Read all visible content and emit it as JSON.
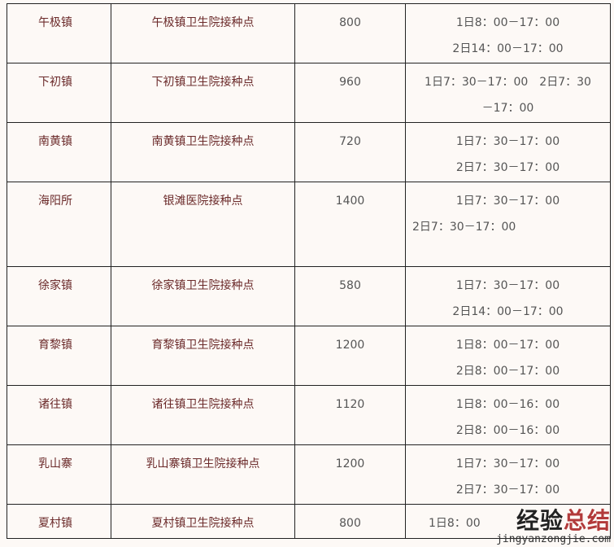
{
  "rows": [
    {
      "town": "午极镇",
      "site": "午极镇卫生院接种点",
      "count": "800",
      "times": [
        "1日8：00－17：00",
        "2日14：00－17：00"
      ],
      "height": 73
    },
    {
      "town": "下初镇",
      "site": "下初镇卫生院接种点",
      "count": "960",
      "times": [
        "1日7：30－17：00　2日7：30",
        "－17：00"
      ],
      "height": 73
    },
    {
      "town": "南黄镇",
      "site": "南黄镇卫生院接种点",
      "count": "720",
      "times": [
        "1日7：30－17：00",
        "2日7：30－17：00"
      ],
      "height": 73
    },
    {
      "town": "海阳所",
      "site": "银滩医院接种点",
      "count": "1400",
      "times": [
        "1日7：30－17：00",
        "2日7：30－17：00"
      ],
      "height": 104
    },
    {
      "town": "徐家镇",
      "site": "徐家镇卫生院接种点",
      "count": "580",
      "times": [
        "1日7：30－17：00",
        "2日14：00－17：00"
      ],
      "height": 73
    },
    {
      "town": "育黎镇",
      "site": "育黎镇卫生院接种点",
      "count": "1200",
      "times": [
        "1日8：00－17：00",
        "2日8：00－17：00"
      ],
      "height": 73
    },
    {
      "town": "诸往镇",
      "site": "诸往镇卫生院接种点",
      "count": "1120",
      "times": [
        "1日8：00－16：00",
        "2日8：00－16：00"
      ],
      "height": 73
    },
    {
      "town": "乳山寨",
      "site": "乳山寨镇卫生院接种点",
      "count": "1200",
      "times": [
        "1日7：30－17：00",
        "2日7：30－17：00"
      ],
      "height": 73
    },
    {
      "town": "夏村镇",
      "site": "夏村镇卫生院接种点",
      "count": "800",
      "times": [
        "1日8：00"
      ],
      "height": 42
    }
  ],
  "watermark": {
    "cn_a": "经验",
    "cn_b": "总结",
    "en": "jingyanzongjie.com"
  }
}
